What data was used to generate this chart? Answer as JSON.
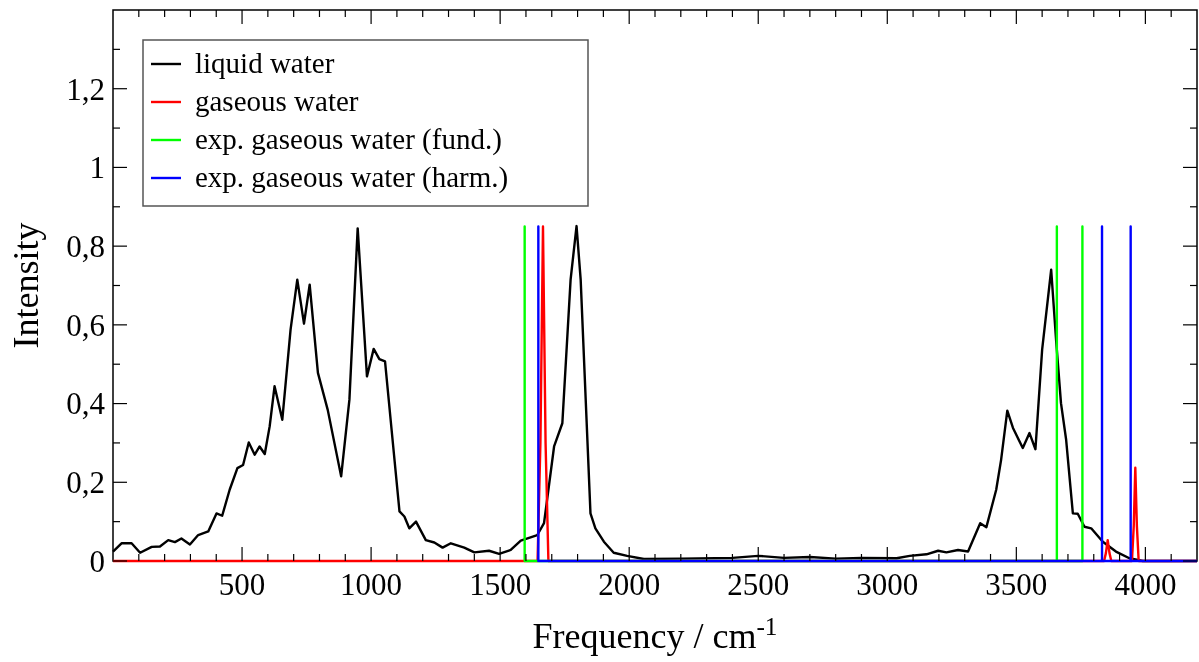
{
  "chart_data": {
    "type": "line",
    "xlabel": "Frequency / cm$^{-1}$",
    "ylabel": "Intensity",
    "xlim": [
      0,
      4200
    ],
    "ylim": [
      0,
      1.4
    ],
    "xticks": [
      {
        "value": 100,
        "label": null
      },
      {
        "value": 200,
        "label": null
      },
      {
        "value": 300,
        "label": null
      },
      {
        "value": 400,
        "label": null
      },
      500,
      {
        "value": 600,
        "label": null
      },
      {
        "value": 700,
        "label": null
      },
      {
        "value": 800,
        "label": null
      },
      {
        "value": 900,
        "label": null
      },
      1000,
      {
        "value": 1100,
        "label": null
      },
      {
        "value": 1200,
        "label": null
      },
      {
        "value": 1300,
        "label": null
      },
      {
        "value": 1400,
        "label": null
      },
      1500,
      {
        "value": 1600,
        "label": null
      },
      {
        "value": 1700,
        "label": null
      },
      {
        "value": 1800,
        "label": null
      },
      {
        "value": 1900,
        "label": null
      },
      2000,
      {
        "value": 2100,
        "label": null
      },
      {
        "value": 2200,
        "label": null
      },
      {
        "value": 2300,
        "label": null
      },
      {
        "value": 2400,
        "label": null
      },
      2500,
      {
        "value": 2600,
        "label": null
      },
      {
        "value": 2700,
        "label": null
      },
      {
        "value": 2800,
        "label": null
      },
      {
        "value": 2900,
        "label": null
      },
      3000,
      {
        "value": 3100,
        "label": null
      },
      {
        "value": 3200,
        "label": null
      },
      {
        "value": 3300,
        "label": null
      },
      {
        "value": 3400,
        "label": null
      },
      3500,
      {
        "value": 3600,
        "label": null
      },
      {
        "value": 3700,
        "label": null
      },
      {
        "value": 3800,
        "label": null
      },
      {
        "value": 3900,
        "label": null
      },
      4000,
      {
        "value": 4100,
        "label": null
      }
    ],
    "yticks": [
      0,
      {
        "value": 0.1,
        "label": null
      },
      {
        "value": 0.2,
        "label": "0,2"
      },
      {
        "value": 0.3,
        "label": null
      },
      {
        "value": 0.4,
        "label": "0,4"
      },
      {
        "value": 0.5,
        "label": null
      },
      {
        "value": 0.6,
        "label": "0,6"
      },
      {
        "value": 0.7,
        "label": null
      },
      {
        "value": 0.8,
        "label": "0,8"
      },
      {
        "value": 0.9,
        "label": null
      },
      1,
      {
        "value": 1.1,
        "label": null
      },
      {
        "value": 1.2,
        "label": "1,2"
      },
      {
        "value": 1.3,
        "label": null
      }
    ],
    "grid": false,
    "legend": "top left",
    "marker": "none",
    "line_style": "solid",
    "series": [
      {
        "name": "liquid water",
        "color": "#000000",
        "x": [
          0,
          33,
          72,
          105,
          150,
          182,
          214,
          240,
          265,
          298,
          330,
          369,
          401,
          423,
          452,
          482,
          504,
          526,
          549,
          568,
          588,
          607,
          626,
          656,
          688,
          714,
          740,
          762,
          794,
          832,
          884,
          916,
          948,
          984,
          1010,
          1032,
          1054,
          1077,
          1110,
          1129,
          1148,
          1174,
          1212,
          1245,
          1277,
          1309,
          1361,
          1400,
          1457,
          1496,
          1541,
          1580,
          1644,
          1670,
          1709,
          1741,
          1773,
          1796,
          1812,
          1850,
          1869,
          1902,
          1940,
          1992,
          2057,
          2200,
          2400,
          2500,
          2600,
          2700,
          2800,
          2900,
          3036,
          3087,
          3152,
          3197,
          3229,
          3274,
          3313,
          3360,
          3384,
          3422,
          3441,
          3465,
          3487,
          3525,
          3551,
          3574,
          3600,
          3635,
          3654,
          3673,
          3693,
          3719,
          3738,
          3764,
          3790,
          3835,
          3886,
          3938,
          3990,
          4200
        ],
        "values": [
          0.024,
          0.045,
          0.045,
          0.021,
          0.036,
          0.037,
          0.053,
          0.048,
          0.057,
          0.042,
          0.066,
          0.075,
          0.121,
          0.115,
          0.181,
          0.236,
          0.244,
          0.301,
          0.27,
          0.291,
          0.272,
          0.342,
          0.444,
          0.359,
          0.588,
          0.715,
          0.603,
          0.702,
          0.478,
          0.384,
          0.215,
          0.41,
          0.845,
          0.469,
          0.539,
          0.513,
          0.507,
          0.35,
          0.126,
          0.113,
          0.083,
          0.1,
          0.053,
          0.047,
          0.034,
          0.045,
          0.034,
          0.022,
          0.026,
          0.018,
          0.028,
          0.052,
          0.066,
          0.096,
          0.291,
          0.35,
          0.715,
          0.851,
          0.715,
          0.121,
          0.083,
          0.049,
          0.021,
          0.013,
          0.005,
          0.006,
          0.008,
          0.013,
          0.008,
          0.01,
          0.006,
          0.008,
          0.007,
          0.013,
          0.017,
          0.026,
          0.022,
          0.028,
          0.024,
          0.096,
          0.086,
          0.181,
          0.257,
          0.382,
          0.338,
          0.287,
          0.325,
          0.284,
          0.537,
          0.74,
          0.562,
          0.401,
          0.308,
          0.121,
          0.12,
          0.087,
          0.083,
          0.049,
          0.024,
          0.007,
          0,
          0
        ]
      },
      {
        "name": "gaseous water",
        "color": "#ff0000",
        "x": [
          0,
          1645,
          1656,
          1666,
          1676,
          1687,
          3840,
          3847,
          3854,
          3861,
          3868,
          3948,
          3955,
          3961,
          3967,
          3974,
          4200
        ],
        "values": [
          0,
          0,
          0.3,
          0.85,
          0.3,
          0,
          0,
          0.02,
          0.053,
          0.02,
          0,
          0,
          0.09,
          0.237,
          0.09,
          0,
          0
        ]
      },
      {
        "name": "exp. gaseous water (fund.)",
        "color": "#00ff00",
        "x": [
          1595,
          1595,
          1595,
          3657,
          3657,
          3657,
          3756,
          3756,
          3756
        ],
        "values": [
          0,
          0.85,
          0,
          0,
          0.85,
          0,
          0,
          0.85,
          0
        ]
      },
      {
        "name": "exp. gaseous water (harm.)",
        "color": "#0000ff",
        "x": [
          1648,
          1648,
          1648,
          3832,
          3832,
          3832,
          3943,
          3943,
          3943,
          4200
        ],
        "values": [
          0,
          0.85,
          0,
          0,
          0.85,
          0,
          0,
          0.85,
          0,
          0
        ]
      }
    ]
  }
}
